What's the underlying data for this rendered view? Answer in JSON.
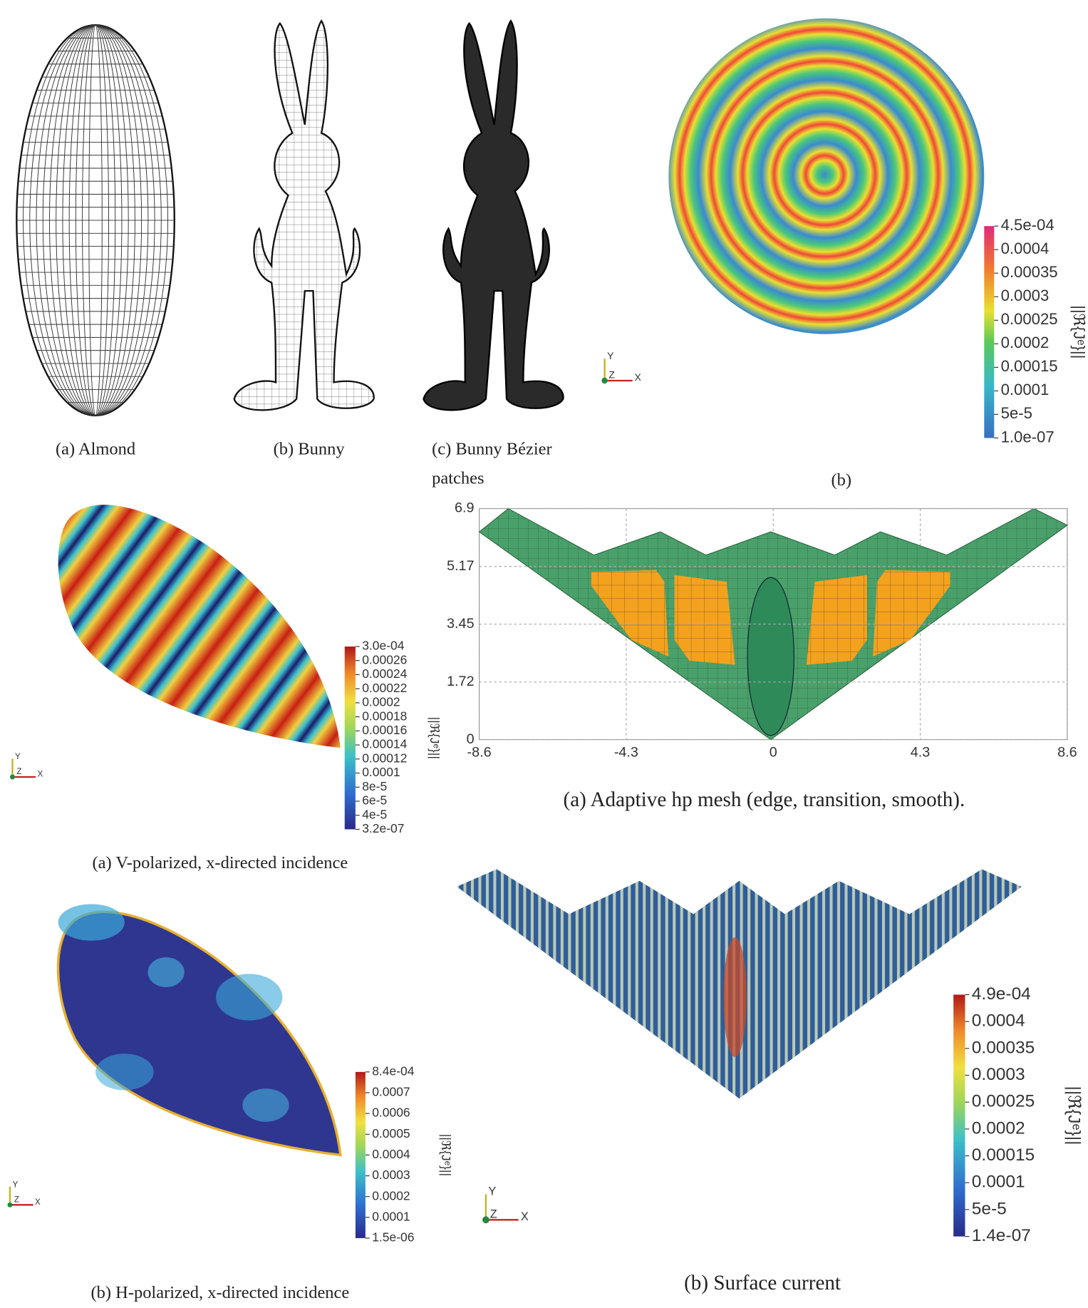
{
  "figure_geometry": {
    "almond_caption": "(a) Almond",
    "bunny_caption": "(b) Bunny",
    "bezier_caption_lines": [
      "(c)   Bunny   Bézier",
      "patches"
    ]
  },
  "triad": {
    "x": "X",
    "y": "Y",
    "z": "Z"
  },
  "sphere": {
    "caption": "(b)",
    "colorbar": {
      "label": "||ℜ{Jᵉ}||",
      "ticks": [
        "4.5e-04",
        "0.0004",
        "0.00035",
        "0.0003",
        "0.00025",
        "0.0002",
        "0.00015",
        "0.0001",
        "5e-5",
        "1.0e-07"
      ]
    }
  },
  "v_polarized": {
    "caption": "(a) V-polarized, x-directed incidence",
    "colorbar": {
      "label": "||ℜ{Jᵉ}||",
      "ticks": [
        "3.0e-04",
        "0.00026",
        "0.00024",
        "0.00022",
        "0.0002",
        "0.00018",
        "0.00016",
        "0.00014",
        "0.00012",
        "0.0001",
        "8e-5",
        "6e-5",
        "4e-5",
        "3.2e-07"
      ]
    }
  },
  "h_polarized": {
    "caption": "(b) H-polarized, x-directed incidence",
    "colorbar": {
      "label": "||ℜ{Jᵉ}||",
      "ticks": [
        "8.4e-04",
        "0.0007",
        "0.0006",
        "0.0005",
        "0.0004",
        "0.0003",
        "0.0002",
        "0.0001",
        "1.5e-06"
      ]
    }
  },
  "mesh_plot": {
    "caption": "(a) Adaptive hp mesh (edge, transition, smooth).",
    "xticks": [
      -8.6,
      -4.3,
      0,
      4.3,
      8.6
    ],
    "yticks": [
      0,
      1.72,
      3.45,
      5.17,
      6.9
    ]
  },
  "surface_current": {
    "caption": "(b) Surface current",
    "colorbar": {
      "label": "||ℜ{Jᵉ}||",
      "ticks": [
        "4.9e-04",
        "0.0004",
        "0.00035",
        "0.0003",
        "0.00025",
        "0.0002",
        "0.00015",
        "0.0001",
        "5e-5",
        "1.4e-07"
      ]
    }
  }
}
